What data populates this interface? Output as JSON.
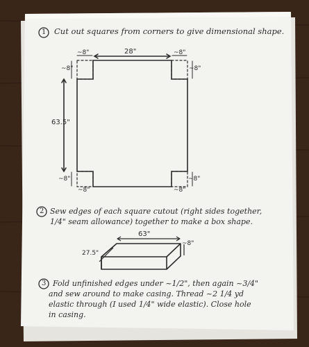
{
  "steps": [
    {
      "number": "1",
      "text": "Cut out squares from corners to give dimensional shape."
    },
    {
      "number": "2",
      "line1": "Sew edges of each square cutout (right sides together,",
      "line2": "1/4\" seam allowance) together to make a box shape."
    },
    {
      "number": "3",
      "line1": "Fold unfinished edges under ~1/2\", then again ~3/4\"",
      "line2": "and sew around to make casing. Thread ~2 1/4 yd",
      "line3": "elastic through (I used 1/4\" wide elastic). Close hole",
      "line4": "in casing."
    }
  ],
  "diagram1": {
    "width_label": "28\"",
    "height_label": "63.5\"",
    "corner_label": "~8\""
  },
  "diagram2": {
    "length_label": "63\"",
    "depth_label": "27.5\"",
    "height_label": "~8\""
  }
}
